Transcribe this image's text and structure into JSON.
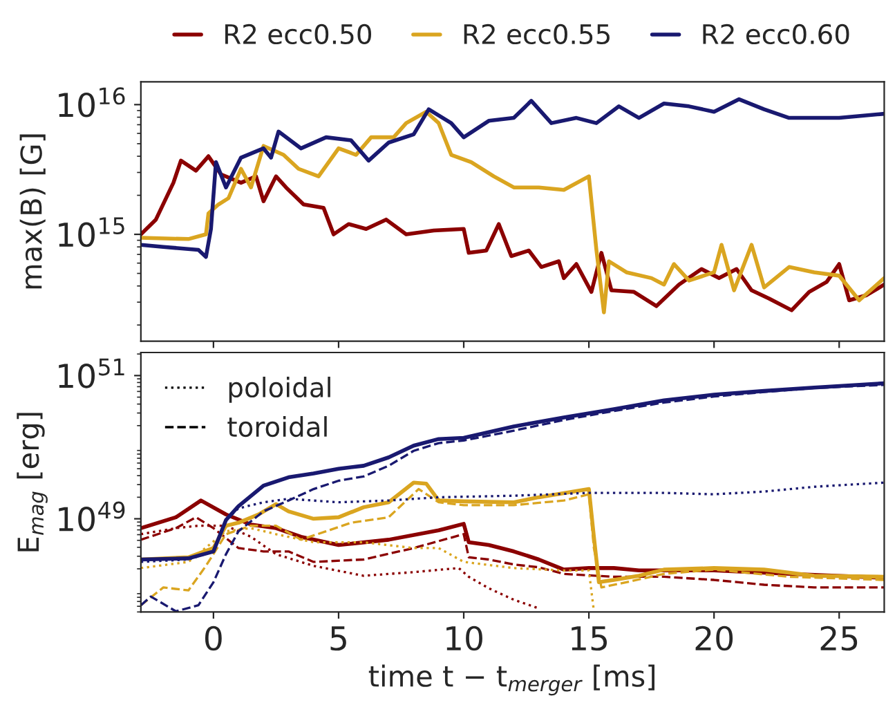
{
  "chart_data": [
    {
      "type": "line",
      "ylabel": "max(B) [G]",
      "log": "y",
      "xlim": [
        -2.9,
        26.8
      ],
      "ylim": [
        150000000000000.0,
        1.5e+16
      ],
      "xticks": [
        0,
        5,
        10,
        15,
        20,
        25
      ],
      "yticks": [
        {
          "value": 1000000000000000.0,
          "label": "10$^{15}$"
        },
        {
          "value": 1e+16,
          "label": "10$^{16}$"
        }
      ],
      "tick_labels": "y",
      "legend": "top",
      "line_style": "solid",
      "marker": "none",
      "series": [
        {
          "name": "R2 ecc0.50",
          "color": "#8b0000",
          "x": [
            -2.9,
            -2.3,
            -1.6,
            -1.3,
            -0.7,
            -0.2,
            0.3,
            1.1,
            1.7,
            2.0,
            2.5,
            2.9,
            3.6,
            4.4,
            4.8,
            5.4,
            6.1,
            6.9,
            7.7,
            8.8,
            10.0,
            10.2,
            10.9,
            11.4,
            11.9,
            12.6,
            13.1,
            13.8,
            14.0,
            14.5,
            15.1,
            15.5,
            15.9,
            16.8,
            17.7,
            18.6,
            19.5,
            20.2,
            20.9,
            21.5,
            22.2,
            23.1,
            23.8,
            24.5,
            25.0,
            25.4,
            26.1,
            26.8
          ],
          "values": [
            1000000000000000.0,
            1300000000000000.0,
            2500000000000000.0,
            3700000000000000.0,
            3100000000000000.0,
            4000000000000000.0,
            2900000000000000.0,
            2500000000000000.0,
            2800000000000000.0,
            1800000000000000.0,
            2800000000000000.0,
            2300000000000000.0,
            1700000000000000.0,
            1600000000000000.0,
            1000000000000000.0,
            1200000000000000.0,
            1100000000000000.0,
            1300000000000000.0,
            1000000000000000.0,
            1070000000000000.0,
            1100000000000000.0,
            720000000000000.0,
            750000000000000.0,
            1200000000000000.0,
            680000000000000.0,
            750000000000000.0,
            560000000000000.0,
            620000000000000.0,
            460000000000000.0,
            590000000000000.0,
            360000000000000.0,
            720000000000000.0,
            370000000000000.0,
            360000000000000.0,
            280000000000000.0,
            410000000000000.0,
            540000000000000.0,
            460000000000000.0,
            540000000000000.0,
            370000000000000.0,
            320000000000000.0,
            260000000000000.0,
            360000000000000.0,
            430000000000000.0,
            590000000000000.0,
            310000000000000.0,
            340000000000000.0,
            410000000000000.0
          ]
        },
        {
          "name": "R2 ecc0.55",
          "color": "#daa520",
          "x": [
            -2.9,
            -1.0,
            -0.3,
            -0.2,
            0.2,
            0.6,
            1.1,
            1.5,
            2.0,
            2.8,
            3.4,
            4.2,
            5.0,
            5.7,
            6.3,
            7.2,
            7.7,
            8.5,
            9.0,
            9.5,
            10.3,
            11.2,
            12.0,
            13.0,
            14.0,
            15.0,
            15.3,
            15.6,
            15.8,
            16.5,
            17.5,
            18.0,
            18.4,
            19.0,
            20.0,
            20.3,
            20.8,
            21.5,
            22.0,
            23.0,
            24.0,
            25.0,
            25.8,
            26.8
          ],
          "values": [
            940000000000000.0,
            920000000000000.0,
            1000000000000000.0,
            1450000000000000.0,
            1700000000000000.0,
            1900000000000000.0,
            3200000000000000.0,
            2300000000000000.0,
            4800000000000000.0,
            4100000000000000.0,
            3200000000000000.0,
            2800000000000000.0,
            4600000000000000.0,
            4100000000000000.0,
            5600000000000000.0,
            5600000000000000.0,
            7200000000000000.0,
            8800000000000000.0,
            7200000000000000.0,
            4100000000000000.0,
            3600000000000000.0,
            2800000000000000.0,
            2300000000000000.0,
            2300000000000000.0,
            2200000000000000.0,
            2800000000000000.0,
            760000000000000.0,
            250000000000000.0,
            620000000000000.0,
            510000000000000.0,
            460000000000000.0,
            410000000000000.0,
            590000000000000.0,
            440000000000000.0,
            510000000000000.0,
            830000000000000.0,
            370000000000000.0,
            830000000000000.0,
            390000000000000.0,
            560000000000000.0,
            510000000000000.0,
            480000000000000.0,
            310000000000000.0,
            460000000000000.0
          ]
        },
        {
          "name": "R2 ecc0.60",
          "color": "#191970",
          "x": [
            -2.9,
            -2.0,
            -0.6,
            -0.3,
            -0.1,
            0.1,
            0.5,
            1.1,
            2.0,
            2.3,
            2.6,
            3.5,
            4.5,
            5.5,
            6.2,
            7.0,
            8.0,
            8.6,
            9.5,
            10.0,
            11.0,
            12.0,
            12.7,
            13.5,
            14.5,
            15.3,
            16.2,
            17.0,
            18.0,
            19.0,
            20.0,
            21.0,
            22.0,
            23.0,
            24.0,
            25.0,
            26.8
          ],
          "values": [
            830000000000000.0,
            800000000000000.0,
            760000000000000.0,
            670000000000000.0,
            1100000000000000.0,
            3600000000000000.0,
            2300000000000000.0,
            3900000000000000.0,
            4600000000000000.0,
            3900000000000000.0,
            6200000000000000.0,
            4600000000000000.0,
            5600000000000000.0,
            5300000000000000.0,
            3700000000000000.0,
            5100000000000000.0,
            5900000000000000.0,
            9200000000000000.0,
            7200000000000000.0,
            5600000000000000.0,
            7500000000000000.0,
            7900000000000000.0,
            1.07e+16,
            7200000000000000.0,
            7900000000000000.0,
            7200000000000000.0,
            9700000000000000.0,
            7900000000000000.0,
            1.02e+16,
            9700000000000000.0,
            8800000000000000.0,
            1.1e+16,
            9200000000000000.0,
            7900000000000000.0,
            7900000000000000.0,
            7900000000000000.0,
            8500000000000000.0
          ]
        }
      ]
    },
    {
      "type": "line",
      "xlabel": "time t − t$_{merger}$ [ms]",
      "ylabel": "E$_{mag}$ [erg]",
      "log": "y",
      "xlim": [
        -2.9,
        26.8
      ],
      "ylim": [
        5e+47,
        2.1e+51
      ],
      "xticks": [
        0,
        5,
        10,
        15,
        20,
        25
      ],
      "yticks": [
        {
          "value": 1e+49,
          "label": "10$^{49}$"
        },
        {
          "value": 1e+51,
          "label": "10$^{51}$"
        }
      ],
      "legend": "top left",
      "marker": "none",
      "series": [
        {
          "color": "#8b0000",
          "line_style": "solid",
          "x": [
            -2.9,
            -1.5,
            -0.5,
            0.5,
            1.5,
            2.5,
            3.5,
            5.0,
            7.0,
            9.0,
            10.0,
            10.2,
            11.0,
            12.0,
            13.0,
            14.0,
            15.0,
            16.0,
            17.0,
            20.0,
            23.0,
            26.8
          ],
          "values": [
            7.4e+48,
            1.05e+49,
            1.8e+49,
            1.15e+49,
            8.3e+48,
            7.4e+48,
            5.6e+48,
            4.3e+48,
            5.1e+48,
            6.9e+48,
            8.5e+48,
            4.7e+48,
            4.3e+48,
            3.5e+48,
            2.7e+48,
            1.95e+48,
            2.05e+48,
            2.05e+48,
            1.9e+48,
            1.9e+48,
            1.7e+48,
            1.5e+48
          ]
        },
        {
          "color": "#8b0000",
          "line_style": "dotted",
          "x": [
            -2.9,
            -1.5,
            -0.6,
            0.5,
            1.5,
            2.5,
            4.0,
            6.0,
            8.0,
            9.8,
            10.2,
            11.0,
            12.0,
            13.0
          ],
          "values": [
            6.1e+48,
            7.4e+48,
            8e+48,
            8e+48,
            5.6e+48,
            3.2e+48,
            2.2e+48,
            1.6e+48,
            1.8e+48,
            2.05e+48,
            1.55e+48,
            1.07e+48,
            7.4e+47,
            5.6e+47
          ]
        },
        {
          "color": "#8b0000",
          "line_style": "dashed",
          "x": [
            -2.9,
            -1.5,
            -0.7,
            0,
            1,
            2,
            3,
            4,
            6,
            8,
            10,
            10.2,
            11,
            12,
            13,
            14,
            16,
            18,
            20,
            22,
            24,
            26.8
          ],
          "values": [
            5.1e+48,
            7.4e+48,
            1.05e+49,
            7.4e+48,
            3.9e+48,
            3.5e+48,
            3.5e+48,
            2.5e+48,
            2.7e+48,
            3.9e+48,
            6.1e+48,
            2.9e+48,
            2.7e+48,
            2.3e+48,
            2.1e+48,
            1.7e+48,
            1.55e+48,
            1.55e+48,
            1.4e+48,
            1.2e+48,
            1.1e+48,
            1.1e+48
          ]
        },
        {
          "color": "#daa520",
          "line_style": "solid",
          "x": [
            -2.9,
            -1.0,
            0,
            0.5,
            1.0,
            1.8,
            2.5,
            3.0,
            4.0,
            5.0,
            6.0,
            7.0,
            8.0,
            8.5,
            9.0,
            10.0,
            12.0,
            13.0,
            15.0,
            15.2,
            15.4,
            16.0,
            17.0,
            18.0,
            20.0,
            22.0,
            24.0,
            26.8
          ],
          "values": [
            2.7e+48,
            2.9e+48,
            3.9e+48,
            8e+48,
            8.8e+48,
            1.15e+49,
            1.6e+49,
            1.27e+49,
            1e+49,
            1.05e+49,
            1.45e+49,
            1.7e+49,
            3.2e+49,
            3.1e+49,
            1.8e+49,
            1.75e+49,
            1.7e+49,
            2e+49,
            2.6e+49,
            5.6e+48,
            1.3e+48,
            1.4e+48,
            1.6e+48,
            1.95e+48,
            2.05e+48,
            1.95e+48,
            1.6e+48,
            1.55e+48
          ]
        },
        {
          "color": "#daa520",
          "line_style": "dotted",
          "x": [
            -2.9,
            -1.0,
            0.5,
            1.5,
            2.5,
            4.0,
            6.0,
            8.0,
            9.0,
            10.0,
            12.0,
            14.0,
            15.0,
            15.2
          ],
          "values": [
            2.05e+48,
            2.5e+48,
            6.7e+48,
            7.4e+48,
            6.1e+48,
            4.7e+48,
            4.7e+48,
            3.9e+48,
            3.9e+48,
            2.5e+48,
            2.05e+48,
            1.9e+48,
            1.9e+48,
            5.1e+47
          ]
        },
        {
          "color": "#daa520",
          "line_style": "dashed",
          "x": [
            -2.9,
            -2.0,
            -1.0,
            -0.3,
            0.5,
            1.5,
            2.5,
            3.5,
            4.5,
            5.5,
            7.0,
            8.2,
            9.0,
            10.0,
            12.0,
            14.0,
            15.0,
            15.2,
            15.5,
            16.5,
            18.0,
            20.0,
            23.0,
            26.8
          ],
          "values": [
            6.2e+47,
            1.1e+48,
            1e+48,
            2.2e+48,
            6.1e+48,
            8e+48,
            8e+48,
            5.1e+48,
            6.7e+48,
            8.8e+48,
            1.05e+49,
            2.6e+49,
            1.7e+49,
            1.55e+49,
            1.55e+49,
            1.8e+49,
            2.2e+49,
            3.9e+48,
            1.1e+48,
            1.3e+48,
            1.7e+48,
            1.95e+48,
            1.55e+48,
            1.4e+48
          ]
        },
        {
          "color": "#191970",
          "line_style": "solid",
          "x": [
            -2.9,
            -1.0,
            0,
            0.5,
            1.0,
            2.0,
            3.0,
            4.0,
            5.0,
            6.0,
            7.0,
            8.0,
            9.0,
            10.0,
            12.0,
            14.0,
            16.0,
            18.0,
            20.0,
            22.0,
            24.0,
            26.8
          ],
          "values": [
            2.7e+48,
            2.8e+48,
            3.5e+48,
            9.6e+48,
            1.5e+49,
            2.9e+49,
            3.8e+49,
            4.3e+49,
            5e+49,
            5.5e+49,
            7.2e+49,
            1.05e+50,
            1.3e+50,
            1.35e+50,
            1.95e+50,
            2.6e+50,
            3.4e+50,
            4.5e+50,
            5.4e+50,
            6.1e+50,
            6.8e+50,
            7.8e+50
          ]
        },
        {
          "color": "#191970",
          "line_style": "dotted",
          "x": [
            -2.9,
            -1.0,
            0,
            0.5,
            1.0,
            2.0,
            3.0,
            5.0,
            7.0,
            9.0,
            12.0,
            15.0,
            18.0,
            20.0,
            22.0,
            24.0,
            26.8
          ],
          "values": [
            2.5e+48,
            2.7e+48,
            3.5e+48,
            9.6e+48,
            1.4e+49,
            1.7e+49,
            1.9e+49,
            1.7e+49,
            1.8e+49,
            2e+49,
            2.1e+49,
            2.3e+49,
            2.3e+49,
            2.2e+49,
            2.4e+49,
            2.8e+49,
            3.2e+49
          ]
        },
        {
          "color": "#191970",
          "line_style": "dashed",
          "x": [
            -2.9,
            -2.5,
            -1.5,
            -0.6,
            0,
            0.5,
            1.0,
            2.0,
            3.0,
            4.0,
            5.0,
            6.0,
            7.0,
            8.0,
            9.0,
            10.0,
            12.0,
            14.0,
            16.0,
            18.0,
            20.0,
            22.0,
            24.0,
            26.8
          ],
          "values": [
            6.2e+47,
            8.2e+47,
            5.1e+47,
            6.2e+47,
            1.3e+48,
            3.2e+48,
            6.7e+48,
            1.27e+49,
            1.8e+49,
            2.6e+49,
            3.4e+49,
            3.9e+49,
            5.5e+49,
            8.9e+49,
            1.14e+50,
            1.24e+50,
            1.7e+50,
            2.4e+50,
            3.2e+50,
            4.2e+50,
            5.1e+50,
            5.9e+50,
            6.7e+50,
            7.4e+50
          ]
        },
        {
          "name": "poloidal",
          "color": "#000000",
          "line_style": "dotted"
        },
        {
          "name": "toroidal",
          "color": "#000000",
          "line_style": "dashed"
        }
      ]
    }
  ]
}
